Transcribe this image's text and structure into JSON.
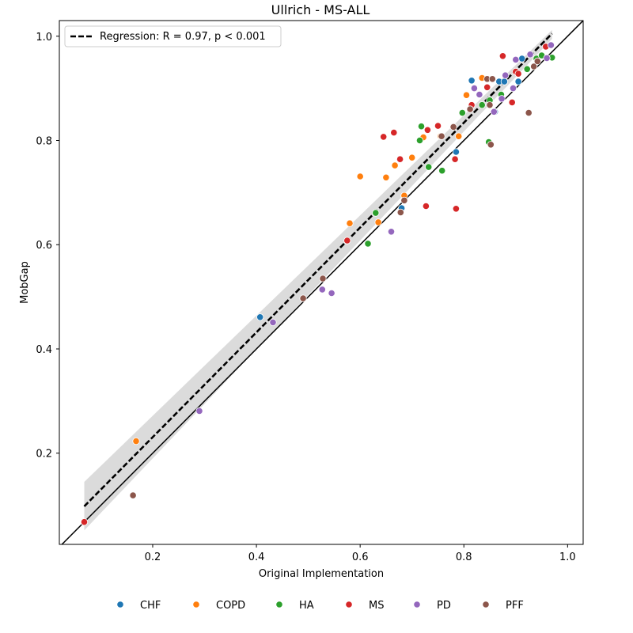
{
  "chart_data": {
    "type": "scatter",
    "title": "Ullrich - MS-ALL",
    "xlabel": "Original Implementation",
    "ylabel": "MobGap",
    "xlim": [
      0.02,
      1.03
    ],
    "ylim": [
      0.025,
      1.03
    ],
    "xticks": [
      "0.2",
      "0.4",
      "0.6",
      "0.8",
      "1.0"
    ],
    "yticks": [
      "0.2",
      "0.4",
      "0.6",
      "0.8",
      "1.0"
    ],
    "grid": false,
    "identity_line": true,
    "regression": {
      "label": "Regression: R = 0.97, p < 0.001",
      "x": [
        0.068,
        0.97
      ],
      "y": [
        0.098,
        1.005
      ],
      "ci_upper": [
        0.145,
        1.012
      ],
      "ci_lower": [
        0.052,
        0.995
      ],
      "legend_position": "top-left"
    },
    "legend_position": "bottom",
    "series": [
      {
        "name": "CHF",
        "color": "#1f77b4",
        "x": [
          0.407,
          0.68,
          0.785,
          0.815,
          0.86,
          0.868,
          0.878,
          0.905,
          0.912
        ],
        "y": [
          0.461,
          0.67,
          0.778,
          0.915,
          0.855,
          0.913,
          0.913,
          0.913,
          0.957
        ]
      },
      {
        "name": "COPD",
        "color": "#ff7f0e",
        "x": [
          0.168,
          0.58,
          0.6,
          0.635,
          0.65,
          0.667,
          0.685,
          0.7,
          0.722,
          0.755,
          0.79,
          0.805,
          0.835
        ],
        "y": [
          0.223,
          0.641,
          0.731,
          0.643,
          0.729,
          0.752,
          0.694,
          0.767,
          0.806,
          0.808,
          0.808,
          0.887,
          0.92
        ]
      },
      {
        "name": "HA",
        "color": "#2ca02c",
        "x": [
          0.615,
          0.63,
          0.715,
          0.718,
          0.732,
          0.758,
          0.797,
          0.835,
          0.848,
          0.85,
          0.872,
          0.922,
          0.94,
          0.95,
          0.97
        ],
        "y": [
          0.602,
          0.661,
          0.8,
          0.827,
          0.749,
          0.742,
          0.853,
          0.868,
          0.797,
          0.877,
          0.888,
          0.937,
          0.957,
          0.963,
          0.959
        ]
      },
      {
        "name": "MS",
        "color": "#d62728",
        "x": [
          0.068,
          0.575,
          0.645,
          0.665,
          0.677,
          0.727,
          0.73,
          0.75,
          0.783,
          0.785,
          0.815,
          0.845,
          0.875,
          0.893,
          0.9,
          0.905,
          0.958
        ],
        "y": [
          0.068,
          0.608,
          0.807,
          0.815,
          0.764,
          0.674,
          0.82,
          0.828,
          0.764,
          0.669,
          0.868,
          0.902,
          0.962,
          0.873,
          0.932,
          0.928,
          0.98
        ]
      },
      {
        "name": "PD",
        "color": "#9467bd",
        "x": [
          0.29,
          0.432,
          0.527,
          0.545,
          0.66,
          0.82,
          0.83,
          0.858,
          0.873,
          0.88,
          0.895,
          0.9,
          0.928,
          0.96,
          0.968
        ],
        "y": [
          0.281,
          0.451,
          0.514,
          0.507,
          0.625,
          0.9,
          0.888,
          0.855,
          0.88,
          0.925,
          0.9,
          0.955,
          0.965,
          0.958,
          0.983
        ]
      },
      {
        "name": "PFF",
        "color": "#8c564b",
        "x": [
          0.162,
          0.49,
          0.528,
          0.678,
          0.685,
          0.757,
          0.78,
          0.812,
          0.845,
          0.85,
          0.852,
          0.855,
          0.925,
          0.935,
          0.942
        ],
        "y": [
          0.119,
          0.497,
          0.535,
          0.662,
          0.685,
          0.808,
          0.826,
          0.86,
          0.918,
          0.868,
          0.792,
          0.918,
          0.853,
          0.942,
          0.952
        ]
      }
    ]
  }
}
